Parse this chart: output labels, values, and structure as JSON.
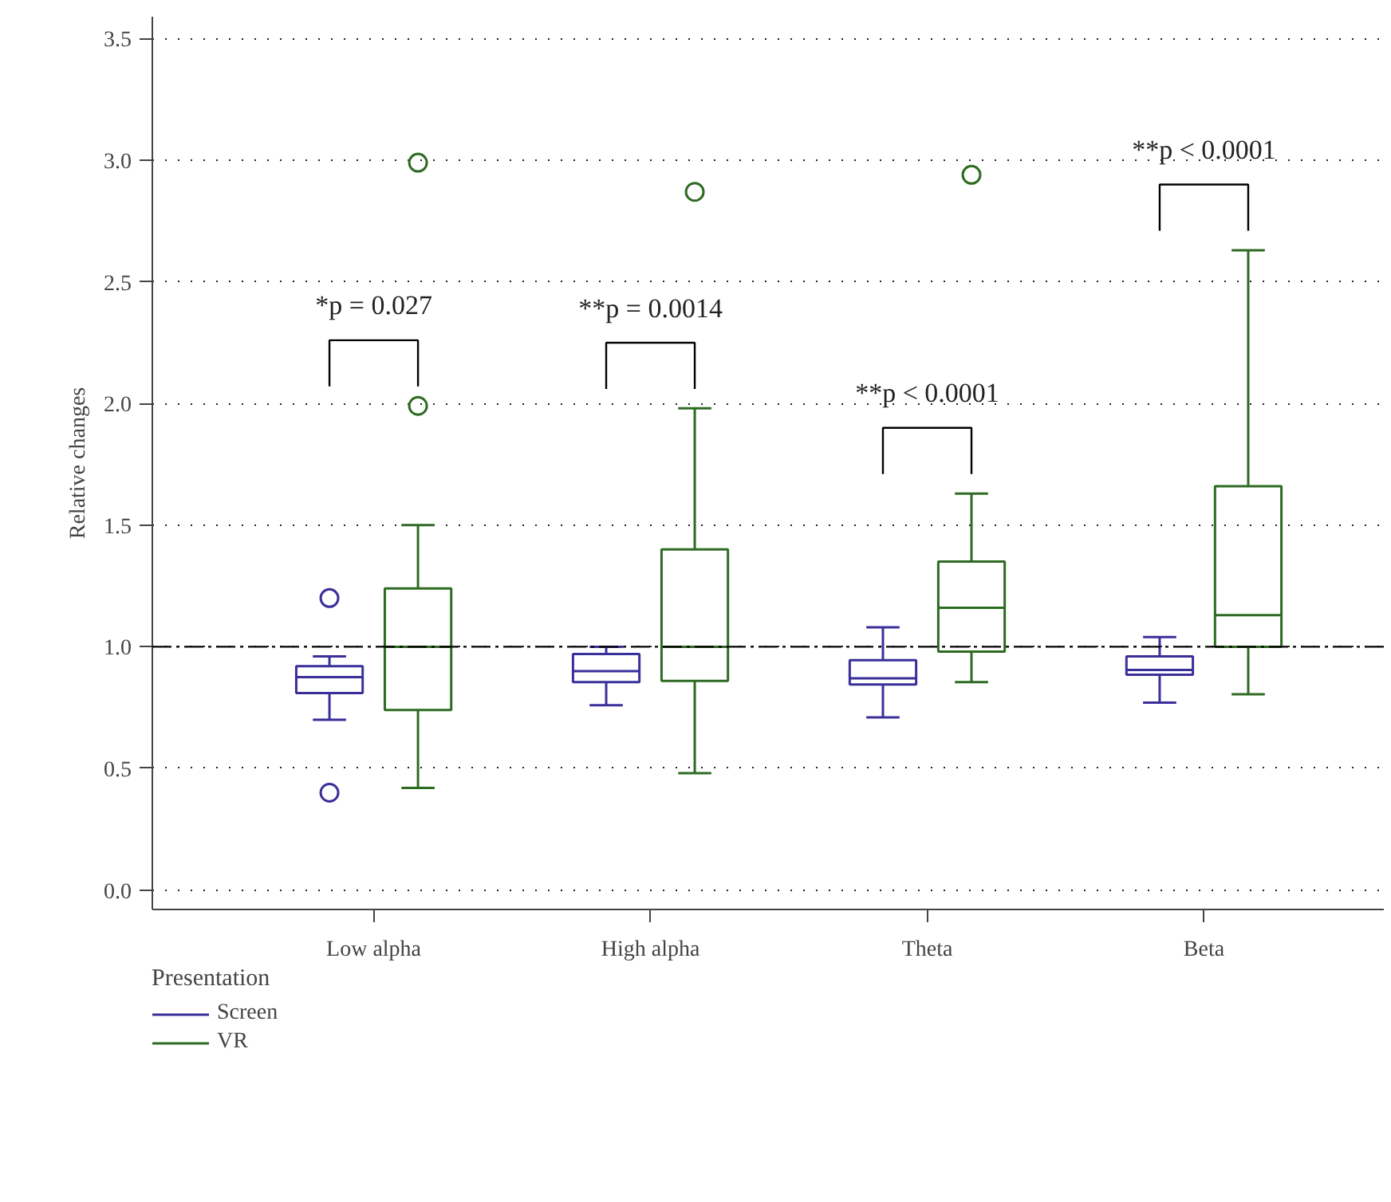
{
  "chart_data": {
    "type": "box",
    "ylabel": "Relative changes",
    "legend_title": "Presentation",
    "categories": [
      "Low alpha",
      "High alpha",
      "Theta",
      "Beta"
    ],
    "series": [
      {
        "name": "Screen",
        "color": "#3b2f9a",
        "boxes": [
          {
            "low": 0.7,
            "q1": 0.81,
            "median": 0.875,
            "q3": 0.92,
            "high": 0.96,
            "outliers": [
              1.2,
              0.4
            ]
          },
          {
            "low": 0.76,
            "q1": 0.855,
            "median": 0.9,
            "q3": 0.97,
            "high": 1.0
          },
          {
            "low": 0.71,
            "q1": 0.845,
            "median": 0.87,
            "q3": 0.945,
            "high": 1.08
          },
          {
            "low": 0.77,
            "q1": 0.885,
            "median": 0.905,
            "q3": 0.96,
            "high": 1.04
          }
        ]
      },
      {
        "name": "VR",
        "color": "#2e6b22",
        "boxes": [
          {
            "low": 0.42,
            "q1": 0.74,
            "median": 1.0,
            "q3": 1.24,
            "high": 1.5,
            "outliers": [
              1.99,
              2.99
            ]
          },
          {
            "low": 0.48,
            "q1": 0.86,
            "median": 1.0,
            "q3": 1.4,
            "high": 1.98,
            "outliers": [
              2.87
            ]
          },
          {
            "low": 0.855,
            "q1": 0.98,
            "median": 1.16,
            "q3": 1.35,
            "high": 1.63,
            "outliers": [
              2.94
            ]
          },
          {
            "low": 0.805,
            "q1": 1.0,
            "median": 1.13,
            "q3": 1.66,
            "high": 2.63
          }
        ]
      }
    ],
    "ylim": [
      -0.08,
      3.59
    ],
    "yticks": [
      {
        "value": 0,
        "label": "0.0"
      },
      0.5,
      {
        "value": 1,
        "label": "1.0"
      },
      1.5,
      {
        "value": 2,
        "label": "2.0"
      },
      2.5,
      {
        "value": 3,
        "label": "3.0"
      },
      3.5
    ],
    "ref_lines": [
      {
        "axis": "y",
        "value": 1.0,
        "color": "#000000",
        "line_style": "dashdot"
      }
    ],
    "annotations": [
      "*p = 0.027",
      "**p = 0.0014",
      "**p < 0.0001",
      "**p < 0.0001"
    ],
    "grid": "y",
    "legend": "bottom left",
    "marker": "circle"
  }
}
